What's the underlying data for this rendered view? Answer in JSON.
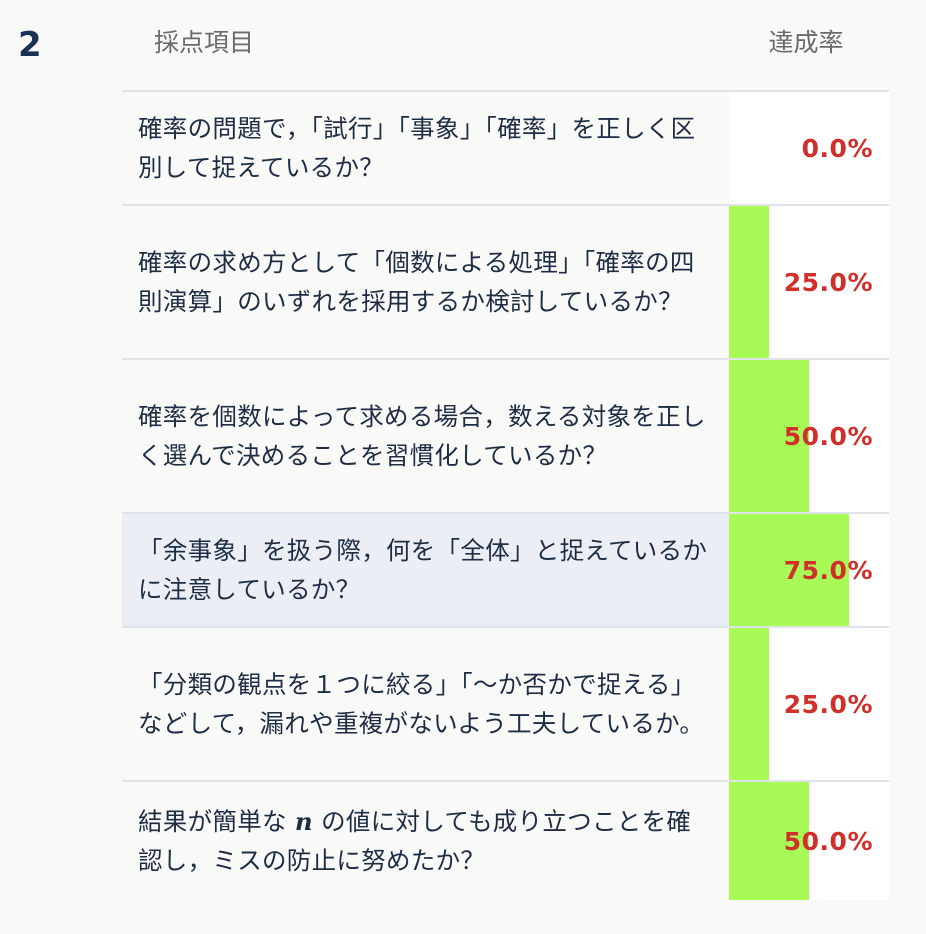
{
  "section": {
    "number": "2"
  },
  "header": {
    "item_label": "採点項目",
    "rate_label": "達成率"
  },
  "colors": {
    "bar": "#a8fb57",
    "rate_text": "#d02f2a",
    "highlight_row": "#ebeff5"
  },
  "rows": [
    {
      "text": "確率の問題で，「試行」「事象」「確率」を正しく区別して捉えているか？",
      "rate": 0.0,
      "rate_label": "0.0%",
      "highlight": false
    },
    {
      "text": "確率の求め方として「個数による処理」「確率の四則演算」のいずれを採用するか検討しているか？",
      "rate": 25.0,
      "rate_label": "25.0%",
      "highlight": false
    },
    {
      "text": "確率を個数によって求める場合，数える対象を正しく選んで決めることを習慣化しているか？",
      "rate": 50.0,
      "rate_label": "50.0%",
      "highlight": false
    },
    {
      "text": "「余事象」を扱う際，何を「全体」と捉えているかに注意しているか？",
      "rate": 75.0,
      "rate_label": "75.0%",
      "highlight": true
    },
    {
      "text": "「分類の観点を１つに絞る」「〜か否かで捉える」などして，漏れや重複がないよう工夫しているか。",
      "rate": 25.0,
      "rate_label": "25.0%",
      "highlight": false
    },
    {
      "text_before": "結果が簡単な",
      "math": "n",
      "text_after": "の値に対しても成り立つことを確認し，ミスの防止に努めたか？",
      "rate": 50.0,
      "rate_label": "50.0%",
      "highlight": false
    }
  ]
}
